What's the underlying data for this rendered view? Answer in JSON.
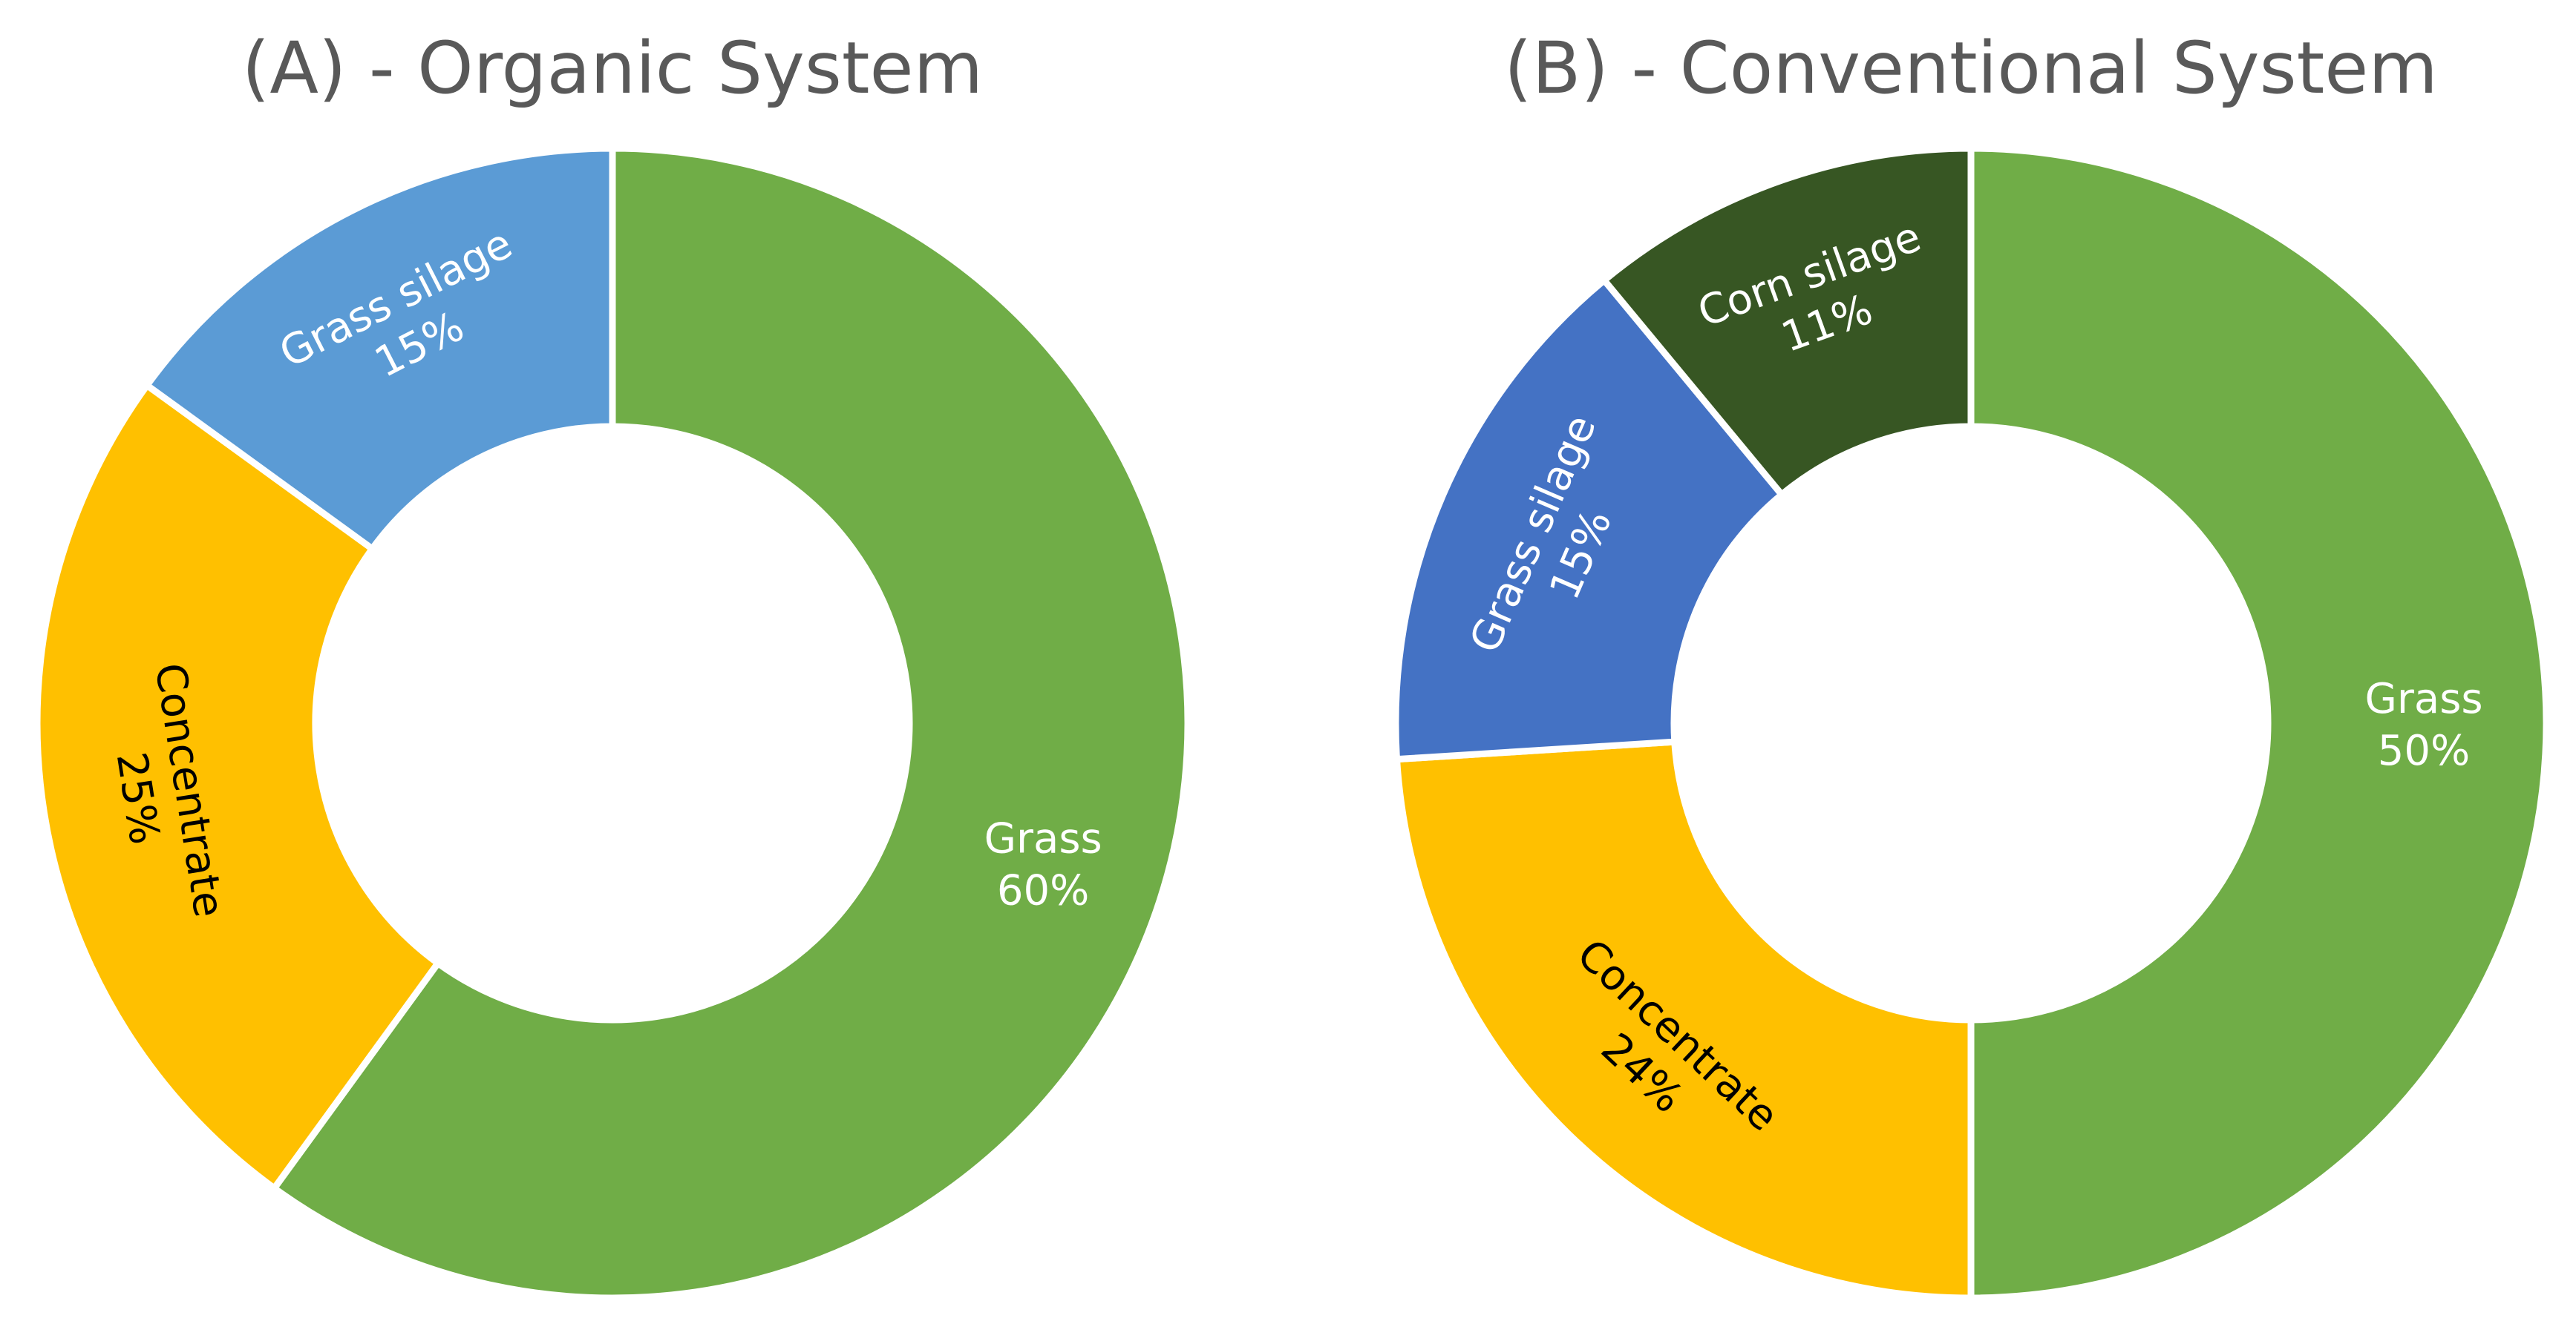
{
  "chart_data": [
    {
      "type": "pie",
      "title": "(A) - Organic System",
      "slices": [
        {
          "label": "Grass",
          "value_label": "60%",
          "value": 60,
          "color": "#70AD47",
          "text_color": "#ffffff"
        },
        {
          "label": "Concentrate",
          "value_label": "25%",
          "value": 25,
          "color": "#FFC000",
          "text_color": "#000000"
        },
        {
          "label": "Grass silage",
          "value_label": "15%",
          "value": 15,
          "color": "#5B9BD5",
          "text_color": "#ffffff"
        }
      ]
    },
    {
      "type": "pie",
      "title": "(B) - Conventional System",
      "slices": [
        {
          "label": "Grass",
          "value_label": "50%",
          "value": 50,
          "color": "#70AD47",
          "text_color": "#ffffff"
        },
        {
          "label": "Concentrate",
          "value_label": "24%",
          "value": 24,
          "color": "#FFC000",
          "text_color": "#000000"
        },
        {
          "label": "Grass silage",
          "value_label": "15%",
          "value": 15,
          "color": "#4472C4",
          "text_color": "#ffffff"
        },
        {
          "label": "Corn silage",
          "value_label": "11%",
          "value": 11,
          "color": "#375623",
          "text_color": "#ffffff"
        }
      ]
    }
  ]
}
